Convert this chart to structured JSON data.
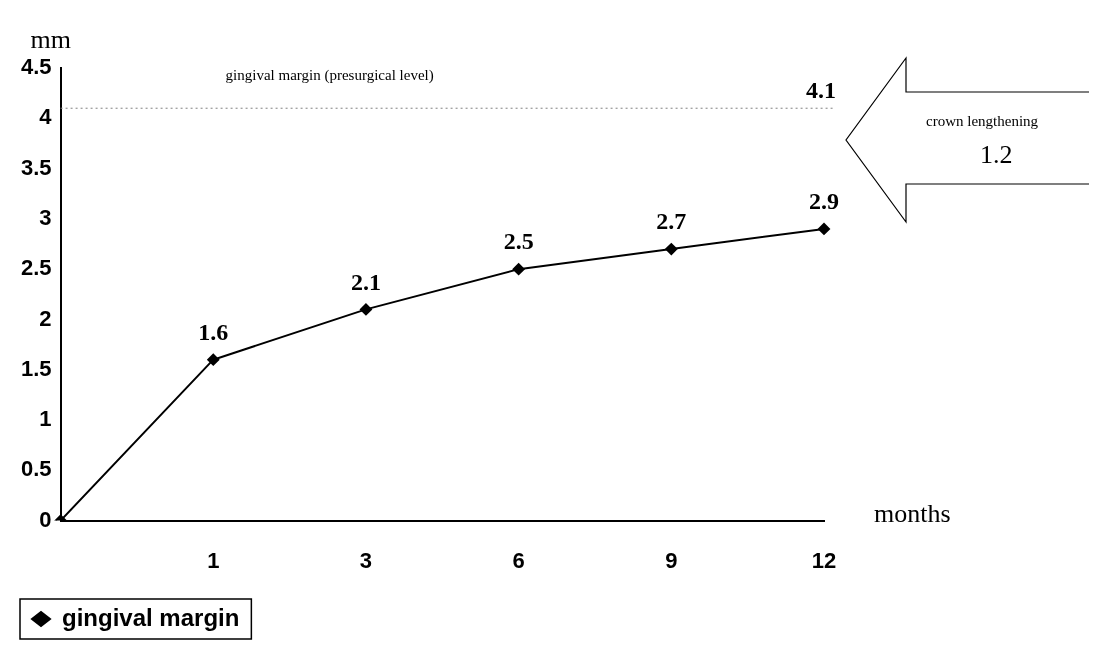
{
  "chart_data": {
    "type": "line",
    "categories": [
      null,
      "1",
      "3",
      "6",
      "9",
      "12"
    ],
    "series": [
      {
        "name": "gingival margin",
        "color": "#000000",
        "values": [
          0,
          1.6,
          2.1,
          2.5,
          2.7,
          2.9
        ],
        "value_labels": [
          null,
          "1.6",
          "2.1",
          "2.5",
          "2.7",
          "2.9"
        ]
      }
    ],
    "xlabel": "months",
    "ylabel": "mm",
    "ylim": [
      0,
      4.5
    ],
    "yticks": [
      0,
      0.5,
      1,
      1.5,
      2,
      2.5,
      3,
      3.5,
      4,
      4.5
    ],
    "ref_lines": [
      {
        "axis": "y",
        "value": 4.1,
        "label": "4.1",
        "color": "#808080",
        "line_style": "dotted"
      }
    ],
    "annotations": [
      "gingival margin (presurgical level)",
      "crown lengthening",
      "1.2"
    ],
    "marker": "diamond",
    "line_style": "solid",
    "grid": false,
    "legend": "bottom"
  }
}
